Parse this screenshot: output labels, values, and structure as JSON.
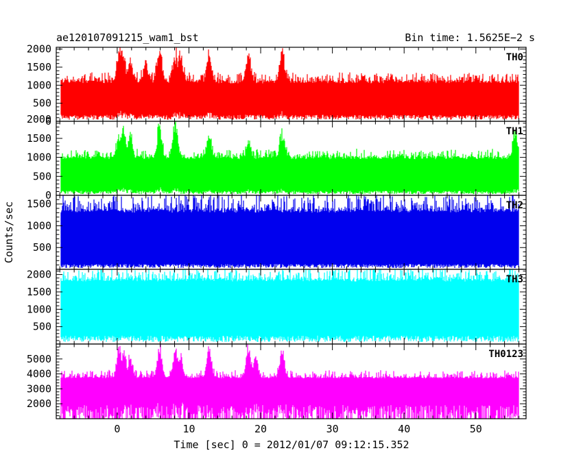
{
  "header": {
    "title": "ae120107091215_wam1_bst",
    "bin_time": "Bin time: 1.5625E−2 s"
  },
  "axes": {
    "ylabel": "Counts/sec",
    "xlabel": "Time [sec] 0 = 2012/01/07 09:12:15.352"
  },
  "chart_data": {
    "type": "line",
    "xlim": [
      -8.5,
      57
    ],
    "xticks_major": [
      0,
      10,
      20,
      30,
      40,
      50
    ],
    "xticks_minor_step": 2,
    "panels": [
      {
        "name": "TH0",
        "color": "#ff0000",
        "ylim": [
          0,
          2050
        ],
        "yticks": [
          0,
          500,
          1000,
          1500,
          2000
        ],
        "yticks_minor_step": 100,
        "base_low": 150,
        "base_high": 1050,
        "peak": 1300,
        "x_range": [
          -7.9,
          56
        ],
        "bursts": [
          {
            "t": 0.3,
            "peak": 2050
          },
          {
            "t": 0.8,
            "peak": 2050
          },
          {
            "t": 1.8,
            "peak": 1750
          },
          {
            "t": 4.0,
            "peak": 1500
          },
          {
            "t": 5.9,
            "peak": 2050
          },
          {
            "t": 8.1,
            "peak": 1900
          },
          {
            "t": 8.8,
            "peak": 1950
          },
          {
            "t": 12.8,
            "peak": 1950
          },
          {
            "t": 18.3,
            "peak": 1850
          },
          {
            "t": 23.0,
            "peak": 2000
          }
        ]
      },
      {
        "name": "TH1",
        "color": "#00ff00",
        "ylim": [
          0,
          1950
        ],
        "yticks": [
          0,
          500,
          1000,
          1500,
          2000
        ],
        "yticks_minor_step": 100,
        "base_low": 100,
        "base_high": 950,
        "peak": 1150,
        "x_range": [
          -7.9,
          56
        ],
        "bursts": [
          {
            "t": 0.3,
            "peak": 1650
          },
          {
            "t": 0.9,
            "peak": 1850
          },
          {
            "t": 1.8,
            "peak": 1700
          },
          {
            "t": 5.9,
            "peak": 1900
          },
          {
            "t": 8.1,
            "peak": 1950
          },
          {
            "t": 12.8,
            "peak": 1600
          },
          {
            "t": 18.3,
            "peak": 1350
          },
          {
            "t": 23.0,
            "peak": 1700
          },
          {
            "t": 55.5,
            "peak": 1700
          }
        ]
      },
      {
        "name": "TH2",
        "color": "#0000ee",
        "ylim": [
          0,
          1700
        ],
        "yticks": [
          500,
          1000,
          1500
        ],
        "yticks_minor_step": 100,
        "base_low": 100,
        "base_high": 1300,
        "peak": 1700,
        "x_range": [
          -7.9,
          56
        ],
        "bursts": []
      },
      {
        "name": "TH3",
        "color": "#00ffff",
        "ylim": [
          0,
          2150
        ],
        "yticks": [
          500,
          1000,
          1500,
          2000
        ],
        "yticks_minor_step": 100,
        "base_low": 200,
        "base_high": 1800,
        "peak": 2150,
        "x_range": [
          -7.9,
          56
        ],
        "bursts": []
      },
      {
        "name": "TH0123",
        "color": "#ff00ff",
        "ylim": [
          1000,
          6000
        ],
        "yticks": [
          2000,
          3000,
          4000,
          5000
        ],
        "yticks_minor_step": 200,
        "base_low": 1600,
        "base_high": 3700,
        "peak": 4200,
        "x_range": [
          -7.9,
          56
        ],
        "bursts": [
          {
            "t": 0.3,
            "peak": 6000
          },
          {
            "t": 0.9,
            "peak": 5900
          },
          {
            "t": 1.8,
            "peak": 5200
          },
          {
            "t": 5.9,
            "peak": 5900
          },
          {
            "t": 8.1,
            "peak": 6000
          },
          {
            "t": 8.8,
            "peak": 5600
          },
          {
            "t": 12.8,
            "peak": 5800
          },
          {
            "t": 18.3,
            "peak": 6000
          },
          {
            "t": 19.3,
            "peak": 5200
          },
          {
            "t": 23.0,
            "peak": 5800
          }
        ]
      }
    ]
  }
}
